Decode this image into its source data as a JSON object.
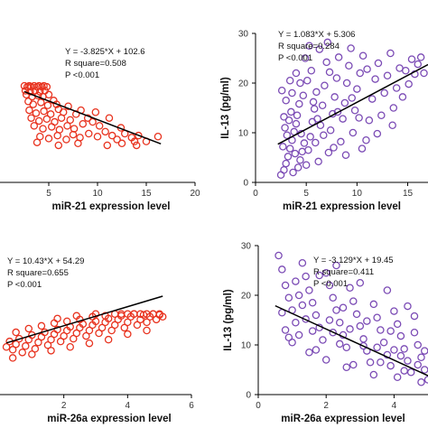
{
  "chart_data": [
    {
      "type": "scatter",
      "xlabel": "miR-21 expression level",
      "ylabel": "",
      "xlim": [
        0,
        20
      ],
      "ylim": [
        0,
        150
      ],
      "xticks": [
        "5",
        "10",
        "15",
        "20"
      ],
      "yticks": [],
      "color": "#e8331f",
      "annotations": [
        "Y = -3.825*X + 102.6",
        "R square=0.508",
        "P <0.001"
      ],
      "fit": {
        "slope": -3.825,
        "intercept": 102.6,
        "x_range": [
          2.5,
          16.5
        ]
      },
      "points": [
        [
          2.5,
          99
        ],
        [
          2.8,
          98
        ],
        [
          3.0,
          99
        ],
        [
          3.2,
          98
        ],
        [
          3.5,
          99
        ],
        [
          3.8,
          98
        ],
        [
          4.0,
          99
        ],
        [
          4.3,
          98
        ],
        [
          4.5,
          99
        ],
        [
          4.8,
          98
        ],
        [
          2.6,
          94
        ],
        [
          3.1,
          93
        ],
        [
          3.6,
          94
        ],
        [
          4.1,
          93
        ],
        [
          4.6,
          94
        ],
        [
          2.7,
          90
        ],
        [
          3.3,
          88
        ],
        [
          3.9,
          89
        ],
        [
          4.4,
          88
        ],
        [
          5.0,
          90
        ],
        [
          2.9,
          83
        ],
        [
          3.4,
          80
        ],
        [
          4.2,
          82
        ],
        [
          4.9,
          79
        ],
        [
          5.5,
          84
        ],
        [
          5.8,
          80
        ],
        [
          3.0,
          74
        ],
        [
          3.7,
          71
        ],
        [
          4.5,
          73
        ],
        [
          5.2,
          70
        ],
        [
          6.0,
          75
        ],
        [
          6.5,
          72
        ],
        [
          7.0,
          78
        ],
        [
          3.2,
          66
        ],
        [
          4.0,
          63
        ],
        [
          4.8,
          65
        ],
        [
          5.6,
          62
        ],
        [
          6.3,
          66
        ],
        [
          7.2,
          64
        ],
        [
          7.8,
          70
        ],
        [
          8.3,
          74
        ],
        [
          3.5,
          58
        ],
        [
          4.4,
          55
        ],
        [
          5.3,
          57
        ],
        [
          6.1,
          54
        ],
        [
          6.9,
          58
        ],
        [
          7.6,
          55
        ],
        [
          8.5,
          60
        ],
        [
          9.0,
          66
        ],
        [
          9.5,
          62
        ],
        [
          10.2,
          58
        ],
        [
          4.1,
          47
        ],
        [
          5.0,
          45
        ],
        [
          5.9,
          48
        ],
        [
          6.8,
          44
        ],
        [
          7.5,
          49
        ],
        [
          8.2,
          46
        ],
        [
          9.1,
          50
        ],
        [
          10.0,
          47
        ],
        [
          10.8,
          52
        ],
        [
          11.5,
          48
        ],
        [
          12.0,
          44
        ],
        [
          12.8,
          50
        ],
        [
          13.5,
          46
        ],
        [
          14.2,
          48
        ],
        [
          15.0,
          42
        ],
        [
          16.2,
          47
        ],
        [
          3.8,
          41
        ],
        [
          6.0,
          38
        ],
        [
          8.0,
          40
        ],
        [
          11.0,
          38
        ],
        [
          12.5,
          40
        ],
        [
          14.0,
          38
        ],
        [
          9.8,
          72
        ],
        [
          11.2,
          66
        ],
        [
          12.4,
          56
        ],
        [
          13.8,
          42
        ]
      ]
    },
    {
      "type": "scatter",
      "xlabel": "miR-21 expression level",
      "ylabel": "IL-13 (pg/ml)",
      "xlim": [
        0,
        17
      ],
      "ylim": [
        0,
        30
      ],
      "xticks": [
        "0",
        "5",
        "10",
        "15"
      ],
      "yticks": [
        "0",
        "10",
        "20",
        "30"
      ],
      "color": "#7b4bb5",
      "annotations": [
        "Y = 1.083*X + 5.306",
        "R square=0.284",
        "P <0.001"
      ],
      "fit": {
        "slope": 1.083,
        "intercept": 5.306,
        "x_range": [
          2.2,
          17
        ]
      },
      "points": [
        [
          2.5,
          1.5
        ],
        [
          2.8,
          2.5
        ],
        [
          3.0,
          3.8
        ],
        [
          3.2,
          5.2
        ],
        [
          3.4,
          6.8
        ],
        [
          3.6,
          8.5
        ],
        [
          3.8,
          10.2
        ],
        [
          4.0,
          11.8
        ],
        [
          4.2,
          3.0
        ],
        [
          4.4,
          4.5
        ],
        [
          4.6,
          6.2
        ],
        [
          4.8,
          7.9
        ],
        [
          3.1,
          9.5
        ],
        [
          3.3,
          12.5
        ],
        [
          3.5,
          14.2
        ],
        [
          3.7,
          2.0
        ],
        [
          3.9,
          5.8
        ],
        [
          4.1,
          13.5
        ],
        [
          4.3,
          15.8
        ],
        [
          4.5,
          9.8
        ],
        [
          4.7,
          17.5
        ],
        [
          2.7,
          7.2
        ],
        [
          2.9,
          11.0
        ],
        [
          3.0,
          16.5
        ],
        [
          5.0,
          3.5
        ],
        [
          5.2,
          6.5
        ],
        [
          5.4,
          9.2
        ],
        [
          5.6,
          12.2
        ],
        [
          5.8,
          14.8
        ],
        [
          6.0,
          18.2
        ],
        [
          5.1,
          20.5
        ],
        [
          5.5,
          22.5
        ],
        [
          5.9,
          8.0
        ],
        [
          6.2,
          4.2
        ],
        [
          6.4,
          11.5
        ],
        [
          6.6,
          15.5
        ],
        [
          6.8,
          19.5
        ],
        [
          7.0,
          24.2
        ],
        [
          7.2,
          6.0
        ],
        [
          7.4,
          10.5
        ],
        [
          7.6,
          13.8
        ],
        [
          7.8,
          17.2
        ],
        [
          8.0,
          21.0
        ],
        [
          8.2,
          25.2
        ],
        [
          6.3,
          26.8
        ],
        [
          7.1,
          28.2
        ],
        [
          8.4,
          8.2
        ],
        [
          8.6,
          12.8
        ],
        [
          8.8,
          16.0
        ],
        [
          9.0,
          20.0
        ],
        [
          9.2,
          23.5
        ],
        [
          9.4,
          27.0
        ],
        [
          9.6,
          10.0
        ],
        [
          9.8,
          14.5
        ],
        [
          10.0,
          18.8
        ],
        [
          10.3,
          22.0
        ],
        [
          10.6,
          25.5
        ],
        [
          10.9,
          8.5
        ],
        [
          11.2,
          12.5
        ],
        [
          11.5,
          16.8
        ],
        [
          11.8,
          20.8
        ],
        [
          12.1,
          24.0
        ],
        [
          12.4,
          13.5
        ],
        [
          12.7,
          18.0
        ],
        [
          13.0,
          21.5
        ],
        [
          13.3,
          26.0
        ],
        [
          13.6,
          15.0
        ],
        [
          13.9,
          19.0
        ],
        [
          14.2,
          23.0
        ],
        [
          14.5,
          17.2
        ],
        [
          14.8,
          22.5
        ],
        [
          15.1,
          19.8
        ],
        [
          15.4,
          24.8
        ],
        [
          15.7,
          21.8
        ],
        [
          16.0,
          23.8
        ],
        [
          16.3,
          25.2
        ],
        [
          16.6,
          22.0
        ],
        [
          2.6,
          18.5
        ],
        [
          3.4,
          20.5
        ],
        [
          4.0,
          22.0
        ],
        [
          4.9,
          25.0
        ],
        [
          5.3,
          27.5
        ],
        [
          5.7,
          16.2
        ],
        [
          6.1,
          12.8
        ],
        [
          7.3,
          22.2
        ],
        [
          8.1,
          14.2
        ],
        [
          9.5,
          17.0
        ],
        [
          10.2,
          13.0
        ],
        [
          11.0,
          22.8
        ],
        [
          2.8,
          13.2
        ],
        [
          3.6,
          18.0
        ],
        [
          4.4,
          20.0
        ],
        [
          6.7,
          9.5
        ],
        [
          7.7,
          7.0
        ],
        [
          8.9,
          5.5
        ],
        [
          10.5,
          6.8
        ],
        [
          12.0,
          9.8
        ],
        [
          13.5,
          11.5
        ]
      ]
    },
    {
      "type": "scatter",
      "xlabel": "miR-26a expression level",
      "ylabel": "",
      "xlim": [
        0,
        6
      ],
      "ylim": [
        0,
        140
      ],
      "xticks": [
        "2",
        "4",
        "6"
      ],
      "yticks": [],
      "color": "#e8331f",
      "annotations": [
        "Y = 10.43*X + 54.29",
        "R square=0.655",
        "P <0.001"
      ],
      "fit": {
        "slope": 10.43,
        "intercept": 54.29,
        "x_range": [
          0.2,
          5.1
        ]
      },
      "points": [
        [
          0.2,
          52
        ],
        [
          0.3,
          58
        ],
        [
          0.4,
          49
        ],
        [
          0.5,
          55
        ],
        [
          0.6,
          61
        ],
        [
          0.7,
          46
        ],
        [
          0.8,
          53
        ],
        [
          0.9,
          60
        ],
        [
          1.0,
          65
        ],
        [
          1.1,
          50
        ],
        [
          1.2,
          57
        ],
        [
          1.3,
          63
        ],
        [
          1.4,
          68
        ],
        [
          1.5,
          54
        ],
        [
          1.6,
          60
        ],
        [
          1.7,
          66
        ],
        [
          1.8,
          71
        ],
        [
          1.9,
          58
        ],
        [
          2.0,
          64
        ],
        [
          2.1,
          70
        ],
        [
          2.2,
          74
        ],
        [
          2.3,
          61
        ],
        [
          2.4,
          67
        ],
        [
          2.5,
          73
        ],
        [
          2.6,
          77
        ],
        [
          2.7,
          64
        ],
        [
          2.8,
          70
        ],
        [
          2.9,
          76
        ],
        [
          3.0,
          80
        ],
        [
          3.1,
          67
        ],
        [
          3.2,
          73
        ],
        [
          3.3,
          79
        ],
        [
          3.4,
          83
        ],
        [
          3.5,
          70
        ],
        [
          3.6,
          76
        ],
        [
          3.7,
          82
        ],
        [
          3.8,
          86
        ],
        [
          3.9,
          73
        ],
        [
          4.0,
          79
        ],
        [
          4.1,
          85
        ],
        [
          4.2,
          88
        ],
        [
          4.3,
          76
        ],
        [
          4.4,
          82
        ],
        [
          4.5,
          87
        ],
        [
          4.6,
          79
        ],
        [
          4.7,
          85
        ],
        [
          4.8,
          88
        ],
        [
          4.9,
          82
        ],
        [
          5.0,
          87
        ],
        [
          5.1,
          85
        ],
        [
          3.6,
          88
        ],
        [
          3.8,
          88
        ],
        [
          4.0,
          88
        ],
        [
          4.2,
          88
        ],
        [
          4.4,
          88
        ],
        [
          4.6,
          88
        ],
        [
          4.8,
          88
        ],
        [
          5.0,
          88
        ],
        [
          0.5,
          68
        ],
        [
          0.9,
          72
        ],
        [
          1.3,
          75
        ],
        [
          1.7,
          78
        ],
        [
          2.1,
          80
        ],
        [
          2.5,
          82
        ],
        [
          2.9,
          85
        ],
        [
          3.3,
          86
        ],
        [
          0.4,
          40
        ],
        [
          1.0,
          44
        ],
        [
          1.6,
          48
        ],
        [
          2.2,
          52
        ],
        [
          2.8,
          56
        ],
        [
          3.4,
          60
        ],
        [
          4.0,
          66
        ],
        [
          4.6,
          70
        ],
        [
          1.8,
          83
        ],
        [
          2.4,
          86
        ],
        [
          3.0,
          88
        ]
      ]
    },
    {
      "type": "scatter",
      "xlabel": "miR-26a expression level",
      "ylabel": "IL-13 (pg/ml)",
      "xlim": [
        0,
        5
      ],
      "ylim": [
        0,
        30
      ],
      "xticks": [
        "0",
        "2",
        "4"
      ],
      "yticks": [
        "0",
        "10",
        "20",
        "30"
      ],
      "color": "#7b4bb5",
      "annotations": [
        "Y = -3.129*X + 19.45",
        "R square=0.411",
        "P <0.001"
      ],
      "fit": {
        "slope": -3.129,
        "intercept": 19.45,
        "x_range": [
          0.5,
          5
        ]
      },
      "points": [
        [
          0.6,
          28.0
        ],
        [
          0.7,
          25.2
        ],
        [
          0.8,
          22.0
        ],
        [
          0.9,
          19.5
        ],
        [
          1.0,
          17.0
        ],
        [
          1.1,
          14.5
        ],
        [
          1.2,
          12.0
        ],
        [
          1.3,
          26.5
        ],
        [
          1.4,
          23.8
        ],
        [
          1.5,
          21.0
        ],
        [
          1.6,
          18.5
        ],
        [
          1.7,
          16.0
        ],
        [
          1.8,
          13.5
        ],
        [
          1.9,
          11.0
        ],
        [
          2.0,
          24.5
        ],
        [
          2.1,
          22.0
        ],
        [
          2.2,
          19.5
        ],
        [
          2.3,
          17.0
        ],
        [
          2.4,
          14.5
        ],
        [
          2.5,
          12.0
        ],
        [
          2.6,
          9.5
        ],
        [
          2.7,
          21.5
        ],
        [
          2.8,
          18.8
        ],
        [
          2.9,
          16.2
        ],
        [
          3.0,
          13.8
        ],
        [
          3.1,
          11.2
        ],
        [
          3.2,
          8.8
        ],
        [
          3.3,
          6.5
        ],
        [
          3.4,
          18.2
        ],
        [
          3.5,
          15.5
        ],
        [
          3.6,
          13.0
        ],
        [
          3.7,
          10.5
        ],
        [
          3.8,
          8.0
        ],
        [
          3.9,
          5.8
        ],
        [
          4.0,
          16.8
        ],
        [
          4.1,
          14.2
        ],
        [
          4.2,
          11.8
        ],
        [
          4.3,
          9.2
        ],
        [
          4.4,
          6.8
        ],
        [
          4.5,
          4.5
        ],
        [
          4.6,
          12.5
        ],
        [
          4.7,
          10.0
        ],
        [
          4.8,
          7.5
        ],
        [
          4.9,
          5.0
        ],
        [
          5.0,
          3.0
        ],
        [
          0.8,
          13.0
        ],
        [
          1.0,
          10.5
        ],
        [
          1.2,
          20.0
        ],
        [
          1.5,
          8.5
        ],
        [
          1.8,
          24.0
        ],
        [
          2.0,
          7.0
        ],
        [
          2.3,
          26.0
        ],
        [
          2.6,
          5.5
        ],
        [
          3.0,
          22.5
        ],
        [
          3.4,
          4.0
        ],
        [
          3.8,
          21.0
        ],
        [
          4.1,
          3.5
        ],
        [
          4.4,
          17.8
        ],
        [
          4.8,
          2.5
        ],
        [
          1.1,
          22.8
        ],
        [
          1.4,
          15.2
        ],
        [
          1.7,
          9.0
        ],
        [
          2.2,
          12.5
        ],
        [
          2.5,
          17.5
        ],
        [
          2.8,
          6.0
        ],
        [
          3.2,
          14.8
        ],
        [
          3.5,
          9.5
        ],
        [
          3.9,
          12.8
        ],
        [
          4.2,
          7.8
        ],
        [
          4.6,
          15.8
        ],
        [
          0.7,
          16.5
        ],
        [
          0.9,
          11.5
        ],
        [
          1.3,
          18.0
        ],
        [
          1.6,
          12.8
        ],
        [
          2.1,
          15.0
        ],
        [
          2.4,
          10.2
        ],
        [
          2.7,
          13.2
        ],
        [
          3.1,
          9.8
        ],
        [
          3.6,
          6.5
        ],
        [
          4.0,
          9.0
        ],
        [
          4.3,
          4.8
        ],
        [
          4.7,
          6.0
        ],
        [
          4.9,
          8.8
        ]
      ]
    }
  ]
}
